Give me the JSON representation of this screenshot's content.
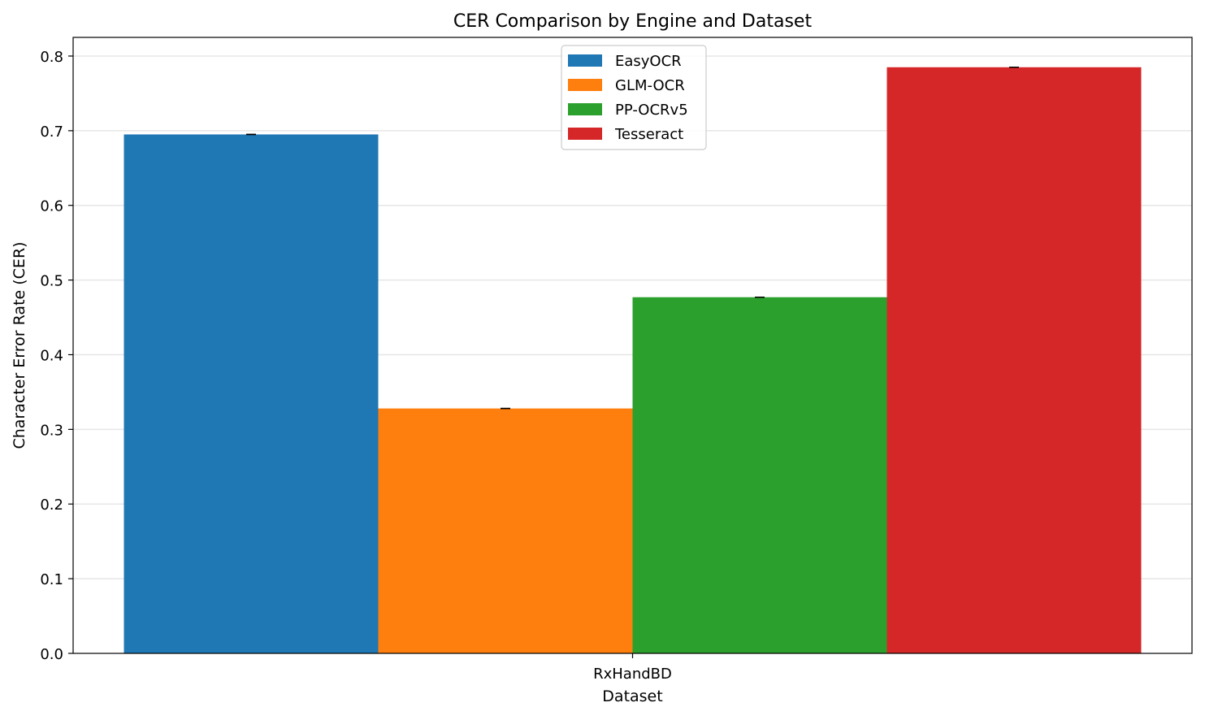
{
  "chart_data": {
    "type": "bar",
    "title": "CER Comparison by Engine and Dataset",
    "xlabel": "Dataset",
    "ylabel": "Character Error Rate (CER)",
    "categories": [
      "RxHandBD"
    ],
    "ylim": [
      0,
      0.825
    ],
    "yticks": [
      "0.0",
      "0.1",
      "0.2",
      "0.3",
      "0.4",
      "0.5",
      "0.6",
      "0.7",
      "0.8"
    ],
    "grid": "horizontal",
    "legend_position": "upper center",
    "error_bars": true,
    "series": [
      {
        "name": "EasyOCR",
        "color": "#1f77b4",
        "values": [
          0.695
        ],
        "errors": [
          0.0
        ]
      },
      {
        "name": "GLM-OCR",
        "color": "#ff7f0e",
        "values": [
          0.328
        ],
        "errors": [
          0.0
        ]
      },
      {
        "name": "PP-OCRv5",
        "color": "#2ca02c",
        "values": [
          0.477
        ],
        "errors": [
          0.0
        ]
      },
      {
        "name": "Tesseract",
        "color": "#d62728",
        "values": [
          0.785
        ],
        "errors": [
          0.0
        ]
      }
    ]
  }
}
